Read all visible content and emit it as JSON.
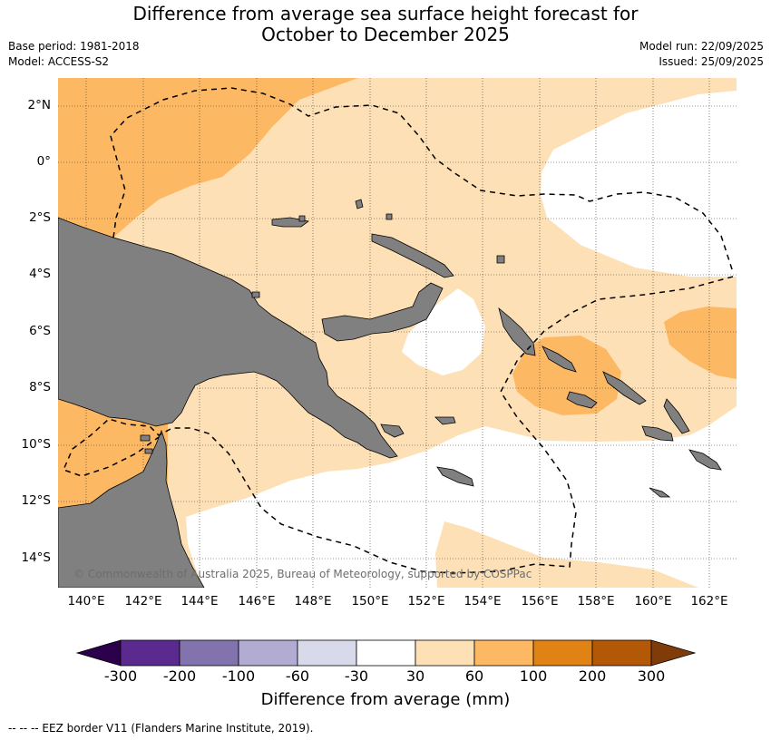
{
  "title_line1": "Difference from average sea surface height forecast for",
  "title_line2": "October to December 2025",
  "base_period": "Base period: 1981-2018",
  "model": "Model: ACCESS-S2",
  "model_run": "Model run: 22/09/2025",
  "issued": "Issued: 25/09/2025",
  "lat_labels": [
    "2°N",
    "0°",
    "2°S",
    "4°S",
    "6°S",
    "8°S",
    "10°S",
    "12°S",
    "14°S"
  ],
  "lon_labels": [
    "140°E",
    "142°E",
    "144°E",
    "146°E",
    "148°E",
    "150°E",
    "152°E",
    "154°E",
    "156°E",
    "158°E",
    "160°E",
    "162°E"
  ],
  "copyright": "© Commonwealth of Australia 2025, Bureau of Meteorology, supported by COSPPac",
  "colorbar": {
    "ticks": [
      "-300",
      "-200",
      "-100",
      "-60",
      "-30",
      "30",
      "60",
      "100",
      "200",
      "300"
    ],
    "colors": [
      "#2d004b",
      "#5a2a8e",
      "#8272ad",
      "#b2abd2",
      "#d8daeb",
      "#ffffff",
      "#fee0b6",
      "#fdb863",
      "#e08214",
      "#b35806",
      "#7f3b08"
    ],
    "label": "Difference from average (mm)"
  },
  "legend_note": "--  --  -- EEZ border V11 (Flanders Marine Institute, 2019).",
  "map_colors": {
    "land": "#808080",
    "light_positive": "#fee0b6",
    "positive": "#fdb863",
    "moderate": "#f5a23b",
    "neutral": "#ffffff"
  }
}
